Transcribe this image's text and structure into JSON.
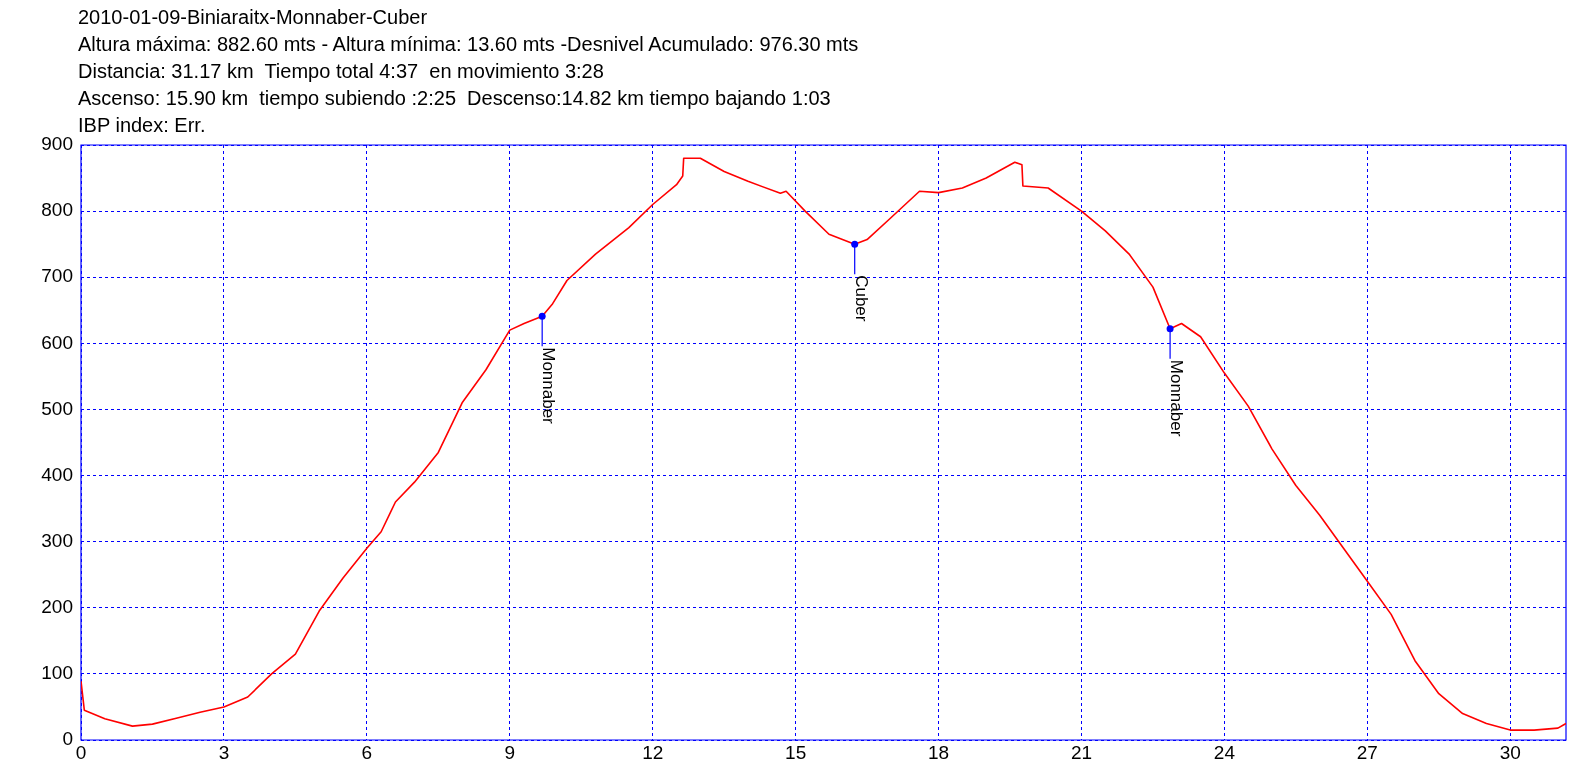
{
  "chart_data": {
    "type": "line",
    "title": "2010-01-09-Biniaraitx-Monnaber-Cuber",
    "subtitle": "Altura máxima: 882.60 mts - Altura mínima: 13.60 mts -Desnivel Acumulado: 976.30 mts\nDistancia: 31.17 km  Tiempo total 4:37  en movimiento 3:28\nAscenso: 15.90 km  tiempo subiendo :2:25  Descenso:14.82 km tiempo bajando 1:03",
    "annotations": [
      "IBP index: Err.",
      {
        "text": "Monnaber",
        "x": 9.68,
        "y": 641
      },
      {
        "text": "Cuber",
        "x": 16.24,
        "y": 750
      },
      {
        "text": "Monnaber",
        "x": 22.86,
        "y": 622
      }
    ],
    "series": [
      {
        "color": "#ff0000",
        "x": [
          0,
          0.07,
          0.5,
          1.08,
          1.5,
          2,
          2.5,
          3,
          3.5,
          4,
          4.5,
          5,
          5.5,
          6,
          6.3,
          6.6,
          7,
          7.5,
          8,
          8.5,
          9,
          9.3,
          9.68,
          9.9,
          10.2,
          10.8,
          11.5,
          12,
          12.5,
          12.63,
          12.65,
          13.0,
          13.5,
          14,
          14.68,
          14.8,
          15.2,
          15.7,
          16.24,
          16.5,
          17,
          17.6,
          18,
          18.5,
          19,
          19.6,
          19.75,
          19.77,
          20.3,
          21,
          21.5,
          22,
          22.5,
          22.86,
          23.1,
          23.5,
          24,
          24.5,
          25,
          25.5,
          26,
          26.5,
          27,
          27.5,
          28,
          28.5,
          29,
          29.5,
          30,
          30.5,
          31,
          31.17
        ],
        "values": [
          89,
          45,
          32,
          21,
          24,
          33,
          42,
          50,
          65,
          100,
          130,
          195,
          245,
          290,
          315,
          360,
          390,
          435,
          510,
          560,
          620,
          630,
          641,
          660,
          695,
          735,
          775,
          810,
          840,
          853,
          880,
          880,
          860,
          845,
          827,
          830,
          800,
          765,
          750,
          757,
          790,
          830,
          828,
          835,
          850,
          874,
          870,
          838,
          835,
          800,
          770,
          735,
          685,
          622,
          630,
          610,
          555,
          505,
          440,
          385,
          340,
          290,
          240,
          190,
          120,
          70,
          40,
          25,
          15,
          15,
          18,
          25
        ]
      }
    ],
    "xlim": [
      0,
      31.17
    ],
    "xticks": [
      0,
      3,
      6,
      9,
      12,
      15,
      18,
      21,
      24,
      27,
      30
    ],
    "ylim": [
      0,
      900
    ],
    "yticks": [
      0,
      100,
      200,
      300,
      400,
      500,
      600,
      700,
      800,
      900
    ],
    "grid": true,
    "legend": false,
    "marker": "none",
    "line_style": "solid"
  }
}
